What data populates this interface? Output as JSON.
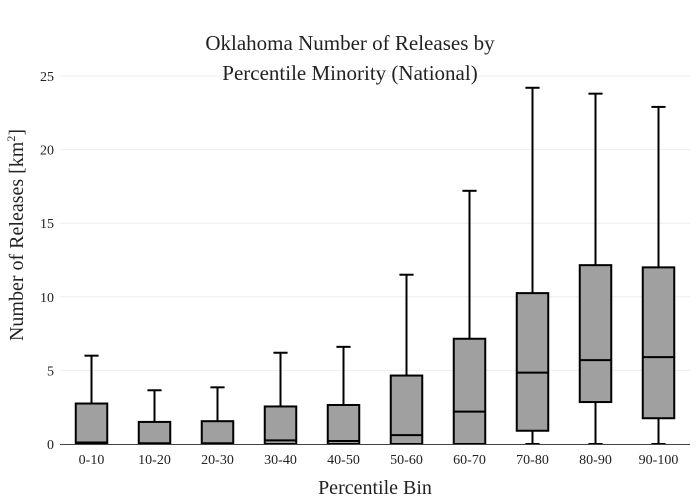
{
  "chart_data": {
    "type": "box",
    "title_lines": [
      "Oklahoma Number of Releases by",
      "Percentile Minority (National)"
    ],
    "xlabel": "Percentile Bin",
    "ylabel_main": "Number of Releases  [km",
    "ylabel_sup": "2",
    "ylabel_end": "]",
    "ylim": [
      0,
      25
    ],
    "yticks": [
      0,
      5,
      10,
      15,
      20,
      25
    ],
    "box_color": "#a0a0a0",
    "grid": true,
    "categories": [
      "0-10",
      "10-20",
      "20-30",
      "30-40",
      "40-50",
      "50-60",
      "60-70",
      "70-80",
      "80-90",
      "90-100"
    ],
    "boxes": [
      {
        "category": "0-10",
        "min": 0,
        "q1": 0,
        "median": 0.1,
        "q3": 2.75,
        "max": 6.0
      },
      {
        "category": "10-20",
        "min": 0,
        "q1": 0,
        "median": 0.05,
        "q3": 1.5,
        "max": 3.65
      },
      {
        "category": "20-30",
        "min": 0,
        "q1": 0,
        "median": 0.05,
        "q3": 1.55,
        "max": 3.85
      },
      {
        "category": "30-40",
        "min": 0,
        "q1": 0,
        "median": 0.25,
        "q3": 2.55,
        "max": 6.2
      },
      {
        "category": "40-50",
        "min": 0,
        "q1": 0,
        "median": 0.2,
        "q3": 2.65,
        "max": 6.6
      },
      {
        "category": "50-60",
        "min": 0,
        "q1": 0,
        "median": 0.6,
        "q3": 4.65,
        "max": 11.5
      },
      {
        "category": "60-70",
        "min": 0,
        "q1": 0,
        "median": 2.2,
        "q3": 7.15,
        "max": 17.2
      },
      {
        "category": "70-80",
        "min": 0,
        "q1": 0.9,
        "median": 4.85,
        "q3": 10.25,
        "max": 24.2
      },
      {
        "category": "80-90",
        "min": 0,
        "q1": 2.85,
        "median": 5.7,
        "q3": 12.15,
        "max": 23.8
      },
      {
        "category": "90-100",
        "min": 0,
        "q1": 1.75,
        "median": 5.9,
        "q3": 12.0,
        "max": 22.9
      }
    ]
  }
}
